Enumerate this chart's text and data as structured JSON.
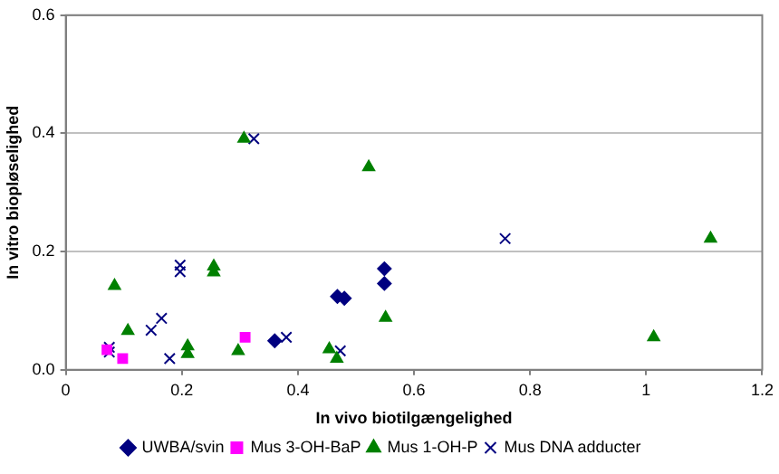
{
  "chart_data": {
    "type": "scatter",
    "xlabel": "In vivo biotilgængelighed",
    "ylabel": "In vitro biopløselighed",
    "xlim": [
      0,
      1.2
    ],
    "xticks": [
      0,
      0.2,
      0.4,
      0.6,
      0.8,
      1,
      1.2
    ],
    "ylim": [
      0,
      0.6
    ],
    "yticks": [
      {
        "value": 0,
        "label": "0.0"
      },
      0.2,
      0.4,
      0.6
    ],
    "grid": "y",
    "legend": "bottom",
    "series": [
      {
        "name": "UWBA/svin",
        "color": "#000080",
        "marker": "diamond",
        "x": [
          0.36,
          0.468,
          0.48,
          0.549,
          0.549
        ],
        "values": [
          0.049,
          0.124,
          0.121,
          0.171,
          0.146
        ]
      },
      {
        "name": "Mus 3-OH-BaP",
        "color": "#ff00ff",
        "marker": "square",
        "x": [
          0.071,
          0.098,
          0.309
        ],
        "values": [
          0.034,
          0.019,
          0.055
        ]
      },
      {
        "name": "Mus 1-OH-P",
        "color": "#008000",
        "marker": "triangle",
        "x": [
          0.084,
          0.107,
          0.21,
          0.21,
          0.255,
          0.255,
          0.297,
          0.307,
          0.454,
          0.467,
          0.522,
          0.551,
          1.013,
          1.111
        ],
        "values": [
          0.142,
          0.066,
          0.04,
          0.027,
          0.175,
          0.165,
          0.032,
          0.391,
          0.035,
          0.019,
          0.343,
          0.088,
          0.055,
          0.222
        ]
      },
      {
        "name": "Mus DNA adducter",
        "color": "#000080",
        "marker": "cross",
        "x": [
          0.075,
          0.075,
          0.147,
          0.165,
          0.179,
          0.197,
          0.197,
          0.324,
          0.38,
          0.473,
          0.757
        ],
        "values": [
          0.038,
          0.03,
          0.067,
          0.087,
          0.019,
          0.177,
          0.166,
          0.391,
          0.055,
          0.032,
          0.222
        ]
      }
    ]
  }
}
